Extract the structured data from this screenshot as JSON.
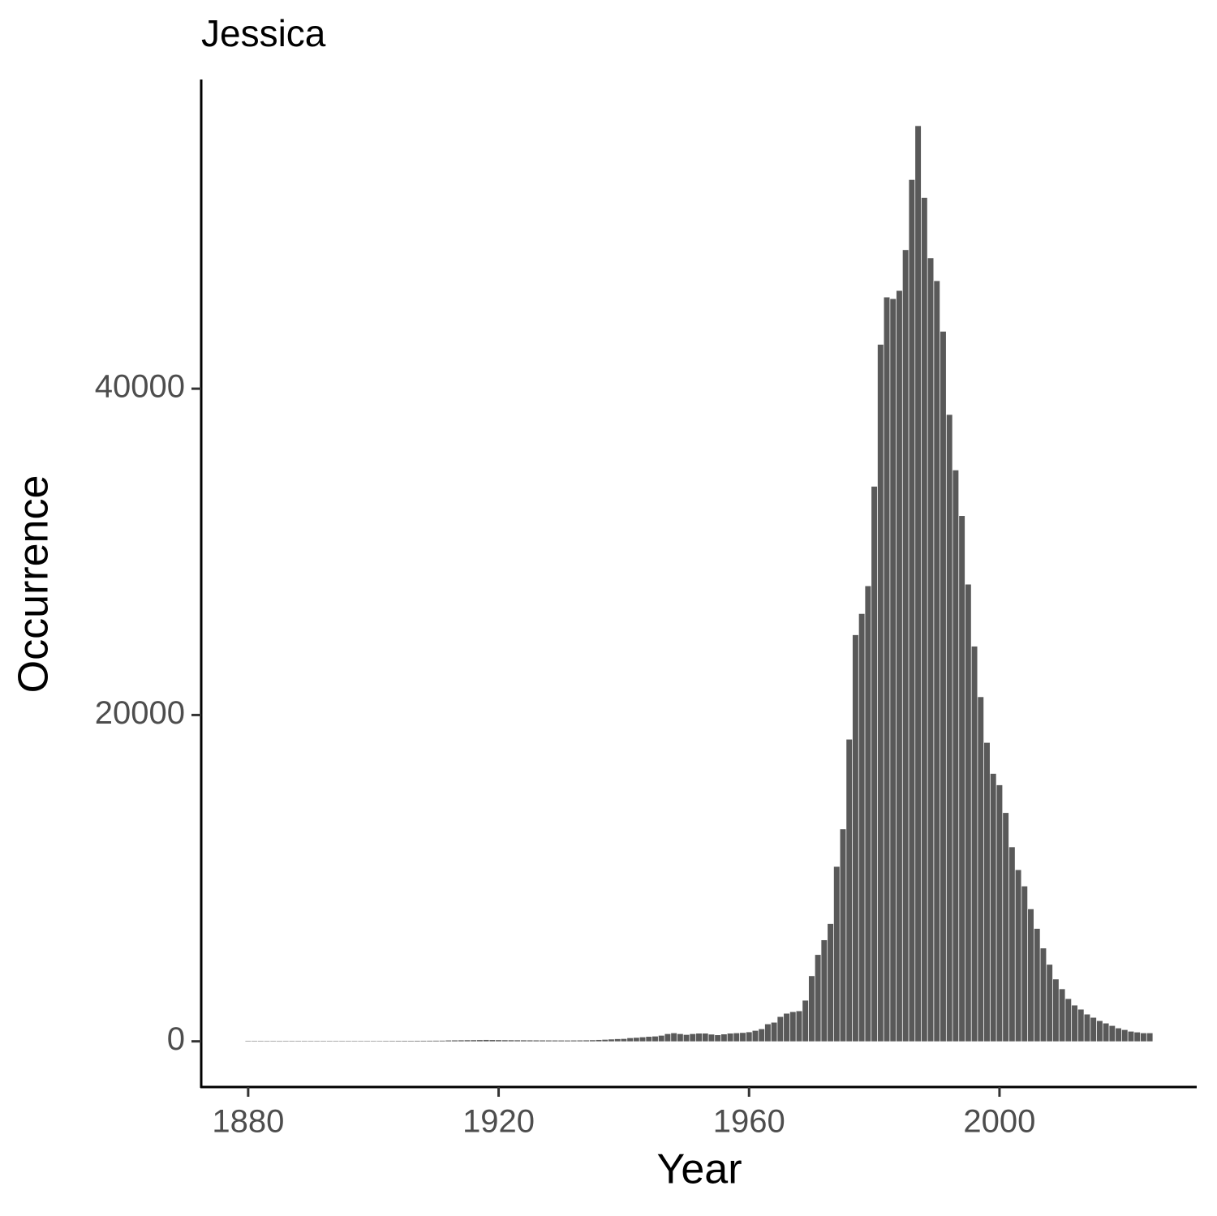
{
  "chart_data": {
    "type": "bar",
    "title": "Jessica",
    "x_label": "Year",
    "y_label": "Occurrence",
    "x": [
      1880,
      1881,
      1882,
      1883,
      1884,
      1885,
      1886,
      1887,
      1888,
      1889,
      1890,
      1891,
      1892,
      1893,
      1894,
      1895,
      1896,
      1897,
      1898,
      1899,
      1900,
      1901,
      1902,
      1903,
      1904,
      1905,
      1906,
      1907,
      1908,
      1909,
      1910,
      1911,
      1912,
      1913,
      1914,
      1915,
      1916,
      1917,
      1918,
      1919,
      1920,
      1921,
      1922,
      1923,
      1924,
      1925,
      1926,
      1927,
      1928,
      1929,
      1930,
      1931,
      1932,
      1933,
      1934,
      1935,
      1936,
      1937,
      1938,
      1939,
      1940,
      1941,
      1942,
      1943,
      1944,
      1945,
      1946,
      1947,
      1948,
      1949,
      1950,
      1951,
      1952,
      1953,
      1954,
      1955,
      1956,
      1957,
      1958,
      1959,
      1960,
      1961,
      1962,
      1963,
      1964,
      1965,
      1966,
      1967,
      1968,
      1969,
      1970,
      1971,
      1972,
      1973,
      1974,
      1975,
      1976,
      1977,
      1978,
      1979,
      1980,
      1981,
      1982,
      1983,
      1984,
      1985,
      1986,
      1987,
      1988,
      1989,
      1990,
      1991,
      1992,
      1993,
      1994,
      1995,
      1996,
      1997,
      1998,
      1999,
      2000,
      2001,
      2002,
      2003,
      2004,
      2005,
      2006,
      2007,
      2008,
      2009,
      2010,
      2011,
      2012,
      2013,
      2014,
      2015,
      2016,
      2017,
      2018,
      2019,
      2020,
      2021,
      2022,
      2023,
      2024
    ],
    "values": [
      10,
      12,
      9,
      8,
      14,
      7,
      12,
      11,
      13,
      10,
      15,
      13,
      16,
      14,
      18,
      17,
      20,
      19,
      22,
      21,
      25,
      24,
      27,
      28,
      30,
      32,
      31,
      35,
      36,
      38,
      40,
      42,
      55,
      60,
      65,
      70,
      72,
      78,
      85,
      80,
      75,
      70,
      68,
      66,
      64,
      62,
      60,
      58,
      56,
      55,
      54,
      52,
      55,
      58,
      62,
      70,
      85,
      100,
      120,
      140,
      150,
      200,
      220,
      250,
      280,
      300,
      350,
      450,
      500,
      450,
      400,
      450,
      480,
      480,
      420,
      380,
      430,
      480,
      500,
      520,
      560,
      650,
      750,
      1050,
      1150,
      1500,
      1700,
      1800,
      1850,
      2500,
      4000,
      5300,
      6200,
      7200,
      10700,
      13000,
      18500,
      24900,
      26200,
      27900,
      34000,
      42700,
      45600,
      45500,
      46000,
      48500,
      52800,
      56100,
      51700,
      48000,
      46600,
      43500,
      38400,
      35000,
      32200,
      28000,
      24200,
      21100,
      18300,
      16400,
      15700,
      14000,
      11900,
      10500,
      9500,
      8100,
      6900,
      5700,
      4700,
      3800,
      3200,
      2600,
      2200,
      1950,
      1650,
      1450,
      1250,
      1100,
      950,
      800,
      700,
      600,
      550,
      500,
      500
    ],
    "color": "#595959",
    "xlim": [
      1872.5,
      2031.5
    ],
    "xticks": [
      1880,
      1920,
      1960,
      2000
    ],
    "ylim": [
      -2800,
      58950
    ],
    "yticks": [
      0,
      20000,
      40000
    ],
    "grid": false
  }
}
